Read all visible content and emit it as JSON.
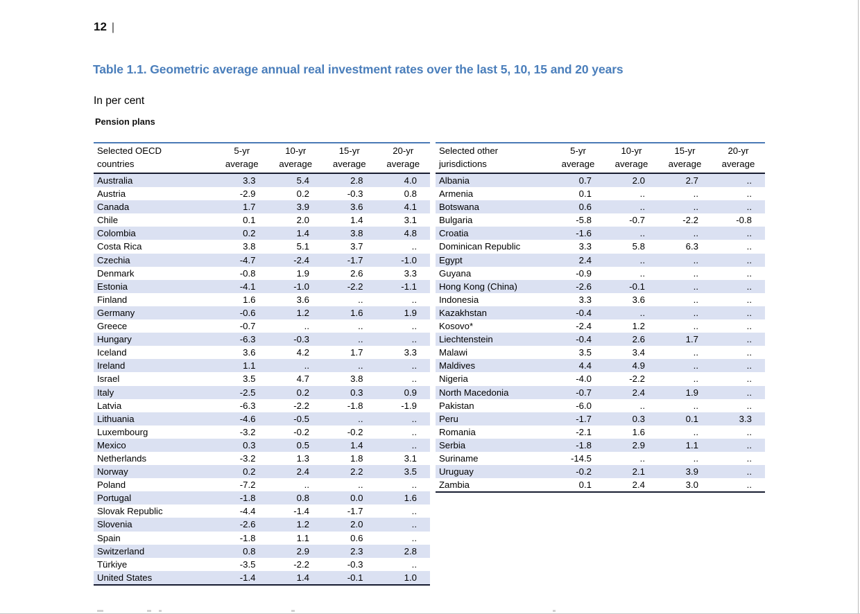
{
  "page": {
    "number": "12",
    "separator": "|"
  },
  "title": "Table 1.1. Geometric average annual real investment rates over the last 5, 10, 15 and 20 years",
  "subtitle": "In per cent",
  "section_label": "Pension plans",
  "colors": {
    "title_blue": "#4a7ebb",
    "table_top_rule": "#4a79b5",
    "header_rule_dark": "#171c30",
    "row_shade": "#dbe1f2"
  },
  "missing_value": "..",
  "tables": [
    {
      "id": "oecd",
      "title_lines": [
        "Selected OECD",
        "countries"
      ],
      "columns": [
        [
          "5-yr",
          "average"
        ],
        [
          "10-yr",
          "average"
        ],
        [
          "15-yr",
          "average"
        ],
        [
          "20-yr",
          "average"
        ]
      ],
      "rows": [
        {
          "name": "Australia",
          "values": [
            "3.3",
            "5.4",
            "2.8",
            "4.0"
          ]
        },
        {
          "name": "Austria",
          "values": [
            "-2.9",
            "0.2",
            "-0.3",
            "0.8"
          ]
        },
        {
          "name": "Canada",
          "values": [
            "1.7",
            "3.9",
            "3.6",
            "4.1"
          ]
        },
        {
          "name": "Chile",
          "values": [
            "0.1",
            "2.0",
            "1.4",
            "3.1"
          ]
        },
        {
          "name": "Colombia",
          "values": [
            "0.2",
            "1.4",
            "3.8",
            "4.8"
          ]
        },
        {
          "name": "Costa Rica",
          "values": [
            "3.8",
            "5.1",
            "3.7",
            ".."
          ]
        },
        {
          "name": "Czechia",
          "values": [
            "-4.7",
            "-2.4",
            "-1.7",
            "-1.0"
          ]
        },
        {
          "name": "Denmark",
          "values": [
            "-0.8",
            "1.9",
            "2.6",
            "3.3"
          ]
        },
        {
          "name": "Estonia",
          "values": [
            "-4.1",
            "-1.0",
            "-2.2",
            "-1.1"
          ]
        },
        {
          "name": "Finland",
          "values": [
            "1.6",
            "3.6",
            "..",
            ".."
          ]
        },
        {
          "name": "Germany",
          "values": [
            "-0.6",
            "1.2",
            "1.6",
            "1.9"
          ]
        },
        {
          "name": "Greece",
          "values": [
            "-0.7",
            "..",
            "..",
            ".."
          ]
        },
        {
          "name": "Hungary",
          "values": [
            "-6.3",
            "-0.3",
            "..",
            ".."
          ]
        },
        {
          "name": "Iceland",
          "values": [
            "3.6",
            "4.2",
            "1.7",
            "3.3"
          ]
        },
        {
          "name": "Ireland",
          "values": [
            "1.1",
            "..",
            "..",
            ".."
          ]
        },
        {
          "name": "Israel",
          "values": [
            "3.5",
            "4.7",
            "3.8",
            ".."
          ]
        },
        {
          "name": "Italy",
          "values": [
            "-2.5",
            "0.2",
            "0.3",
            "0.9"
          ]
        },
        {
          "name": "Latvia",
          "values": [
            "-6.3",
            "-2.2",
            "-1.8",
            "-1.9"
          ]
        },
        {
          "name": "Lithuania",
          "values": [
            "-4.6",
            "-0.5",
            "..",
            ".."
          ]
        },
        {
          "name": "Luxembourg",
          "values": [
            "-3.2",
            "-0.2",
            "-0.2",
            ".."
          ]
        },
        {
          "name": "Mexico",
          "values": [
            "0.3",
            "0.5",
            "1.4",
            ".."
          ]
        },
        {
          "name": "Netherlands",
          "values": [
            "-3.2",
            "1.3",
            "1.8",
            "3.1"
          ]
        },
        {
          "name": "Norway",
          "values": [
            "0.2",
            "2.4",
            "2.2",
            "3.5"
          ]
        },
        {
          "name": "Poland",
          "values": [
            "-7.2",
            "..",
            "..",
            ".."
          ]
        },
        {
          "name": "Portugal",
          "values": [
            "-1.8",
            "0.8",
            "0.0",
            "1.6"
          ]
        },
        {
          "name": "Slovak Republic",
          "values": [
            "-4.4",
            "-1.4",
            "-1.7",
            ".."
          ]
        },
        {
          "name": "Slovenia",
          "values": [
            "-2.6",
            "1.2",
            "2.0",
            ".."
          ]
        },
        {
          "name": "Spain",
          "values": [
            "-1.8",
            "1.1",
            "0.6",
            ".."
          ]
        },
        {
          "name": "Switzerland",
          "values": [
            "0.8",
            "2.9",
            "2.3",
            "2.8"
          ]
        },
        {
          "name": "Türkiye",
          "values": [
            "-3.5",
            "-2.2",
            "-0.3",
            ".."
          ]
        },
        {
          "name": "United States",
          "values": [
            "-1.4",
            "1.4",
            "-0.1",
            "1.0"
          ]
        }
      ]
    },
    {
      "id": "other",
      "title_lines": [
        "Selected other",
        "jurisdictions"
      ],
      "columns": [
        [
          "5-yr",
          "average"
        ],
        [
          "10-yr",
          "average"
        ],
        [
          "15-yr",
          "average"
        ],
        [
          "20-yr",
          "average"
        ]
      ],
      "rows": [
        {
          "name": "Albania",
          "values": [
            "0.7",
            "2.0",
            "2.7",
            ".."
          ]
        },
        {
          "name": "Armenia",
          "values": [
            "0.1",
            "..",
            "..",
            ".."
          ]
        },
        {
          "name": "Botswana",
          "values": [
            "0.6",
            "..",
            "..",
            ".."
          ]
        },
        {
          "name": "Bulgaria",
          "values": [
            "-5.8",
            "-0.7",
            "-2.2",
            "-0.8"
          ]
        },
        {
          "name": "Croatia",
          "values": [
            "-1.6",
            "..",
            "..",
            ".."
          ]
        },
        {
          "name": "Dominican Republic",
          "values": [
            "3.3",
            "5.8",
            "6.3",
            ".."
          ]
        },
        {
          "name": "Egypt",
          "values": [
            "2.4",
            "..",
            "..",
            ".."
          ]
        },
        {
          "name": "Guyana",
          "values": [
            "-0.9",
            "..",
            "..",
            ".."
          ]
        },
        {
          "name": "Hong Kong (China)",
          "values": [
            "-2.6",
            "-0.1",
            "..",
            ".."
          ]
        },
        {
          "name": "Indonesia",
          "values": [
            "3.3",
            "3.6",
            "..",
            ".."
          ]
        },
        {
          "name": "Kazakhstan",
          "values": [
            "-0.4",
            "..",
            "..",
            ".."
          ]
        },
        {
          "name": "Kosovo*",
          "values": [
            "-2.4",
            "1.2",
            "..",
            ".."
          ]
        },
        {
          "name": "Liechtenstein",
          "values": [
            "-0.4",
            "2.6",
            "1.7",
            ".."
          ]
        },
        {
          "name": "Malawi",
          "values": [
            "3.5",
            "3.4",
            "..",
            ".."
          ]
        },
        {
          "name": "Maldives",
          "values": [
            "4.4",
            "4.9",
            "..",
            ".."
          ]
        },
        {
          "name": "Nigeria",
          "values": [
            "-4.0",
            "-2.2",
            "..",
            ".."
          ]
        },
        {
          "name": "North Macedonia",
          "values": [
            "-0.7",
            "2.4",
            "1.9",
            ".."
          ]
        },
        {
          "name": "Pakistan",
          "values": [
            "-6.0",
            "..",
            "..",
            ".."
          ]
        },
        {
          "name": "Peru",
          "values": [
            "-1.7",
            "0.3",
            "0.1",
            "3.3"
          ]
        },
        {
          "name": "Romania",
          "values": [
            "-2.1",
            "1.6",
            "..",
            ".."
          ]
        },
        {
          "name": "Serbia",
          "values": [
            "-1.8",
            "2.9",
            "1.1",
            ".."
          ]
        },
        {
          "name": "Suriname",
          "values": [
            "-14.5",
            "..",
            "..",
            ".."
          ]
        },
        {
          "name": "Uruguay",
          "values": [
            "-0.2",
            "2.1",
            "3.9",
            ".."
          ]
        },
        {
          "name": "Zambia",
          "values": [
            "0.1",
            "2.4",
            "3.0",
            ".."
          ]
        }
      ]
    }
  ]
}
